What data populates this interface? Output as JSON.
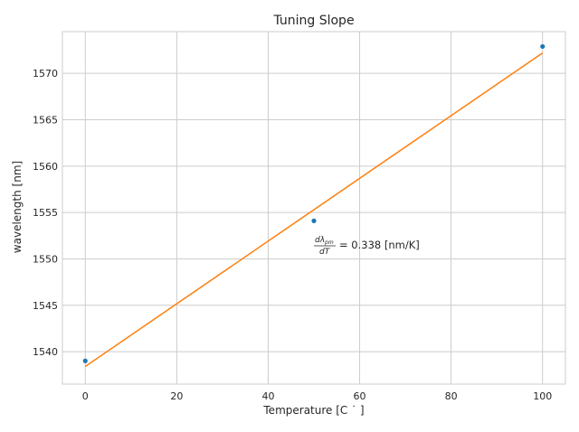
{
  "chart_data": {
    "type": "scatter",
    "title": "Tuning Slope",
    "xlabel": "Temperature [C $^\\circ$]",
    "xlabel_display": "Temperature [C ˙ ]",
    "ylabel": "wavelength [nm]",
    "xlim": [
      -5,
      105
    ],
    "ylim": [
      1536.5,
      1574.5
    ],
    "xticks": [
      0,
      20,
      40,
      60,
      80,
      100
    ],
    "yticks": [
      1540,
      1545,
      1550,
      1555,
      1560,
      1565,
      1570
    ],
    "grid": true,
    "series": [
      {
        "kind": "points",
        "color": "#1f77b4",
        "x": [
          0,
          50,
          100
        ],
        "y": [
          1539.0,
          1554.1,
          1572.9
        ]
      },
      {
        "kind": "fit-line",
        "color": "#ff7f0e",
        "x": [
          0,
          100
        ],
        "y": [
          1538.4,
          1572.2
        ]
      }
    ],
    "annotation": {
      "numerator": "dλ",
      "numerator_sub": "pm",
      "denominator": "dT",
      "text": "=  0.338 [nm/K]",
      "x": 50,
      "y": 1551.3
    }
  }
}
